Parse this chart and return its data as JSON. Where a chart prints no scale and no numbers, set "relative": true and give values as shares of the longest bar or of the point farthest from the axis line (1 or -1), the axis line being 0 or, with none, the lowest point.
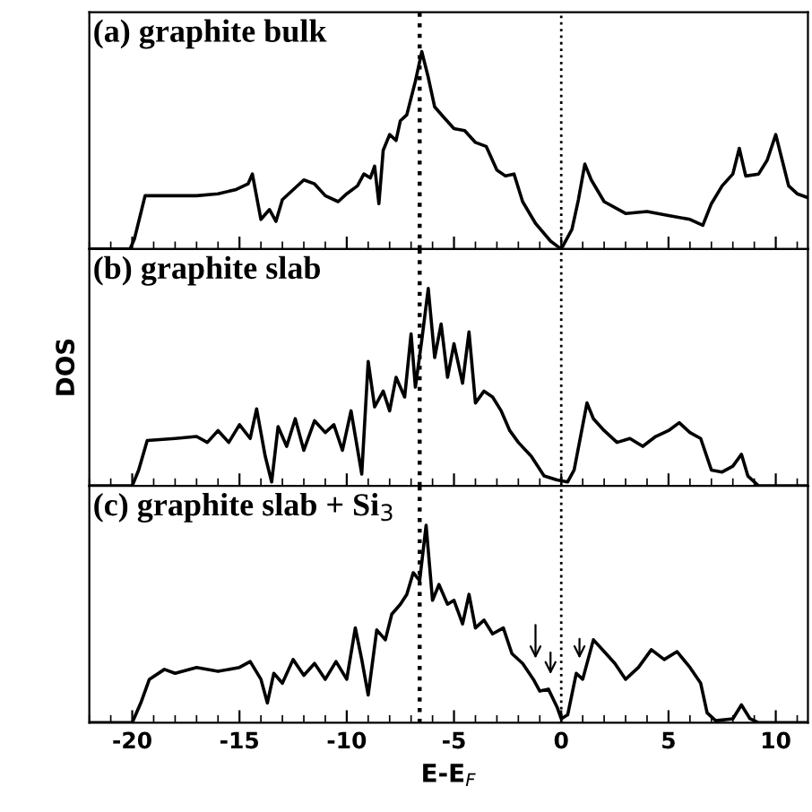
{
  "chart_data": [
    {
      "type": "line",
      "title": "(a) graphite bulk",
      "relative": true,
      "xlim": [
        -22,
        11.5
      ],
      "xticks": [
        -20,
        -15,
        -10,
        -5,
        0,
        5,
        10
      ],
      "tick_labels": false,
      "series": [
        {
          "color": "#000000",
          "x": [
            -22,
            -20.1,
            -19.9,
            -19.4,
            -17,
            -16,
            -15.2,
            -14.6,
            -14.4,
            -14.0,
            -13.6,
            -13.3,
            -13.0,
            -12.5,
            -12.0,
            -11.5,
            -11,
            -10.4,
            -10,
            -9.5,
            -9.2,
            -8.9,
            -8.7,
            -8.5,
            -8.3,
            -8.0,
            -7.7,
            -7.5,
            -7.2,
            -6.8,
            -6.5,
            -6.2,
            -5.9,
            -5.5,
            -5.0,
            -4.5,
            -4.0,
            -3.5,
            -3.0,
            -2.6,
            -2.2,
            -1.8,
            -1.2,
            -0.5,
            0,
            0.5,
            0.8,
            1.1,
            1.4,
            2,
            3,
            4,
            5,
            6,
            6.6,
            7.0,
            7.5,
            8.0,
            8.3,
            8.6,
            9.2,
            9.6,
            10.0,
            10.3,
            10.6,
            11,
            11.5
          ],
          "values": [
            0,
            0,
            0.05,
            0.27,
            0.27,
            0.28,
            0.3,
            0.33,
            0.38,
            0.15,
            0.2,
            0.14,
            0.25,
            0.3,
            0.35,
            0.33,
            0.27,
            0.24,
            0.28,
            0.32,
            0.38,
            0.36,
            0.42,
            0.23,
            0.5,
            0.58,
            0.55,
            0.65,
            0.68,
            0.85,
            1.0,
            0.87,
            0.72,
            0.67,
            0.61,
            0.6,
            0.54,
            0.52,
            0.4,
            0.37,
            0.38,
            0.24,
            0.13,
            0.04,
            0,
            0.1,
            0.25,
            0.43,
            0.35,
            0.24,
            0.18,
            0.19,
            0.17,
            0.15,
            0.12,
            0.23,
            0.32,
            0.38,
            0.51,
            0.37,
            0.38,
            0.45,
            0.58,
            0.45,
            0.32,
            0.28,
            0.26
          ]
        }
      ],
      "ref_lines": [
        {
          "axis": "x",
          "value": -6.6,
          "line_style": "dotted"
        },
        {
          "axis": "x",
          "value": 0,
          "line_style": "dotted"
        }
      ]
    },
    {
      "type": "line",
      "title": "(b) graphite slab",
      "ylabel": "DOS",
      "relative": true,
      "xlim": [
        -22,
        11.5
      ],
      "xticks": [
        -20,
        -15,
        -10,
        -5,
        0,
        5,
        10
      ],
      "tick_labels": false,
      "series": [
        {
          "color": "#000000",
          "x": [
            -22,
            -20.0,
            -19.7,
            -19.3,
            -18,
            -17,
            -16.5,
            -16,
            -15.5,
            -15,
            -14.5,
            -14.2,
            -13.8,
            -13.5,
            -13.2,
            -12.8,
            -12.4,
            -12,
            -11.5,
            -11,
            -10.6,
            -10.2,
            -9.8,
            -9.3,
            -9.0,
            -8.7,
            -8.3,
            -8.0,
            -7.7,
            -7.3,
            -7.0,
            -6.8,
            -6.5,
            -6.2,
            -5.9,
            -5.6,
            -5.3,
            -5.0,
            -4.6,
            -4.3,
            -4.0,
            -3.6,
            -3.2,
            -2.8,
            -2.4,
            -2,
            -1.4,
            -0.8,
            -0.2,
            0.3,
            0.6,
            0.9,
            1.2,
            1.5,
            2,
            2.6,
            3.2,
            3.8,
            4.4,
            5,
            5.5,
            6,
            6.5,
            7,
            7.5,
            8.0,
            8.4,
            8.7,
            9.2,
            11.5
          ],
          "values": [
            0,
            0,
            0.08,
            0.23,
            0.24,
            0.25,
            0.22,
            0.28,
            0.22,
            0.31,
            0.24,
            0.39,
            0.15,
            0.02,
            0.3,
            0.2,
            0.34,
            0.18,
            0.33,
            0.27,
            0.31,
            0.18,
            0.38,
            0.06,
            0.63,
            0.4,
            0.48,
            0.38,
            0.55,
            0.45,
            0.77,
            0.5,
            0.74,
            1.0,
            0.65,
            0.82,
            0.55,
            0.72,
            0.52,
            0.78,
            0.42,
            0.48,
            0.45,
            0.38,
            0.28,
            0.22,
            0.15,
            0.05,
            0.03,
            0.02,
            0.08,
            0.25,
            0.42,
            0.34,
            0.28,
            0.22,
            0.24,
            0.2,
            0.25,
            0.28,
            0.32,
            0.27,
            0.24,
            0.08,
            0.07,
            0.1,
            0.16,
            0.05,
            0,
            0
          ]
        }
      ],
      "ref_lines": [
        {
          "axis": "x",
          "value": -6.6,
          "line_style": "dotted"
        },
        {
          "axis": "x",
          "value": 0,
          "line_style": "dotted"
        }
      ]
    },
    {
      "type": "line",
      "title": "(c) graphite slab + Si$_{3}$",
      "xlabel": "E-E$_{F}$",
      "relative": true,
      "xlim": [
        -22,
        11.5
      ],
      "xticks": [
        -20,
        -15,
        -10,
        -5,
        0,
        5,
        10
      ],
      "tick_labels": "x",
      "series": [
        {
          "color": "#000000",
          "x": [
            -22,
            -20,
            -19.6,
            -19.2,
            -18.5,
            -18,
            -17,
            -16,
            -15,
            -14.5,
            -14.0,
            -13.7,
            -13.4,
            -13,
            -12.5,
            -12,
            -11.5,
            -11,
            -10.5,
            -10.0,
            -9.6,
            -9.3,
            -9.0,
            -8.6,
            -8.2,
            -7.9,
            -7.5,
            -7.2,
            -6.9,
            -6.6,
            -6.3,
            -6.0,
            -5.7,
            -5.3,
            -5.0,
            -4.6,
            -4.3,
            -4.0,
            -3.6,
            -3.2,
            -2.7,
            -2.3,
            -1.8,
            -1.3,
            -1.0,
            -0.6,
            -0.2,
            0,
            0.3,
            0.7,
            1.0,
            1.5,
            2.0,
            2.5,
            3,
            3.6,
            4.2,
            4.8,
            5.4,
            6.0,
            6.5,
            6.8,
            7.2,
            8.0,
            8.4,
            8.8,
            9.2,
            11.5
          ],
          "values": [
            0,
            0,
            0.1,
            0.22,
            0.27,
            0.25,
            0.28,
            0.26,
            0.28,
            0.31,
            0.22,
            0.1,
            0.25,
            0.2,
            0.32,
            0.24,
            0.3,
            0.22,
            0.31,
            0.22,
            0.48,
            0.32,
            0.14,
            0.47,
            0.42,
            0.55,
            0.6,
            0.65,
            0.76,
            0.72,
            1.0,
            0.62,
            0.7,
            0.6,
            0.62,
            0.5,
            0.65,
            0.48,
            0.52,
            0.45,
            0.48,
            0.35,
            0.3,
            0.22,
            0.16,
            0.17,
            0.08,
            0.02,
            0.04,
            0.25,
            0.22,
            0.42,
            0.36,
            0.3,
            0.22,
            0.28,
            0.37,
            0.32,
            0.36,
            0.28,
            0.2,
            0.05,
            0.01,
            0.02,
            0.09,
            0.02,
            0,
            0
          ]
        }
      ],
      "ref_lines": [
        {
          "axis": "x",
          "value": -6.6,
          "line_style": "dotted"
        },
        {
          "axis": "x",
          "value": 0,
          "line_style": "dotted"
        }
      ]
    }
  ]
}
